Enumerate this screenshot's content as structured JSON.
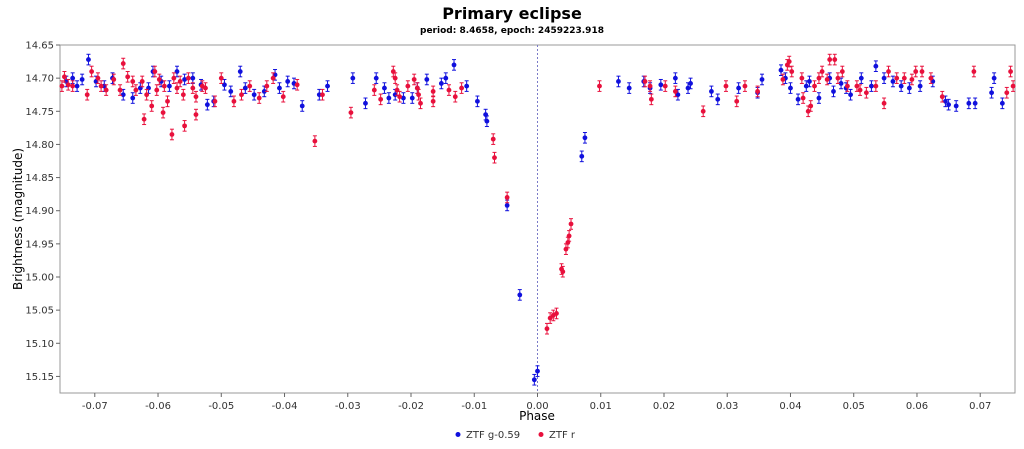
{
  "chart_data": {
    "type": "scatter",
    "title": "Primary eclipse",
    "subtitle": "period: 8.4658, epoch: 2459223.918",
    "xlabel": "Phase",
    "ylabel": "Brightness (magnitude)",
    "xlim": [
      -0.0755,
      0.0755
    ],
    "ylim": [
      14.65,
      15.175
    ],
    "y_inverted": true,
    "x_ticks": [
      -0.07,
      -0.06,
      -0.05,
      -0.04,
      -0.03,
      -0.02,
      -0.01,
      0.0,
      0.01,
      0.02,
      0.03,
      0.04,
      0.05,
      0.06,
      0.07
    ],
    "x_tick_labels": [
      "-0.07",
      "-0.06",
      "-0.05",
      "-0.04",
      "-0.03",
      "-0.02",
      "-0.01",
      "0.00",
      "0.01",
      "0.02",
      "0.03",
      "0.04",
      "0.05",
      "0.06",
      "0.07"
    ],
    "y_ticks": [
      14.65,
      14.7,
      14.75,
      14.8,
      14.85,
      14.9,
      14.95,
      15.0,
      15.05,
      15.1,
      15.15
    ],
    "y_tick_labels": [
      "14.65",
      "14.70",
      "14.75",
      "14.80",
      "14.85",
      "14.90",
      "14.95",
      "15.00",
      "15.05",
      "15.10",
      "15.15"
    ],
    "grid": false,
    "reference_line_x": 0.0,
    "legend_position": "bottom",
    "series": [
      {
        "name": "ZTF g-0.59",
        "color": "#1010dd",
        "error": 0.008,
        "points": [
          [
            -0.0745,
            14.705
          ],
          [
            -0.0735,
            14.7
          ],
          [
            -0.0728,
            14.712
          ],
          [
            -0.072,
            14.702
          ],
          [
            -0.071,
            14.672
          ],
          [
            -0.0698,
            14.705
          ],
          [
            -0.0685,
            14.712
          ],
          [
            -0.0672,
            14.7
          ],
          [
            -0.0655,
            14.725
          ],
          [
            -0.064,
            14.73
          ],
          [
            -0.0628,
            14.715
          ],
          [
            -0.0615,
            14.715
          ],
          [
            -0.0608,
            14.69
          ],
          [
            -0.0595,
            14.705
          ],
          [
            -0.0582,
            14.712
          ],
          [
            -0.057,
            14.69
          ],
          [
            -0.0558,
            14.702
          ],
          [
            -0.0545,
            14.7
          ],
          [
            -0.0532,
            14.71
          ],
          [
            -0.0522,
            14.74
          ],
          [
            -0.0512,
            14.735
          ],
          [
            -0.0495,
            14.71
          ],
          [
            -0.0485,
            14.72
          ],
          [
            -0.047,
            14.69
          ],
          [
            -0.0462,
            14.715
          ],
          [
            -0.0448,
            14.725
          ],
          [
            -0.0432,
            14.72
          ],
          [
            -0.0415,
            14.695
          ],
          [
            -0.0408,
            14.715
          ],
          [
            -0.0395,
            14.705
          ],
          [
            -0.0385,
            14.708
          ],
          [
            -0.0372,
            14.742
          ],
          [
            -0.0345,
            14.725
          ],
          [
            -0.0332,
            14.712
          ],
          [
            -0.0292,
            14.7
          ],
          [
            -0.0272,
            14.738
          ],
          [
            -0.0255,
            14.7
          ],
          [
            -0.0242,
            14.715
          ],
          [
            -0.0235,
            14.73
          ],
          [
            -0.0225,
            14.725
          ],
          [
            -0.0212,
            14.73
          ],
          [
            -0.0198,
            14.73
          ],
          [
            -0.019,
            14.715
          ],
          [
            -0.0175,
            14.702
          ],
          [
            -0.0152,
            14.708
          ],
          [
            -0.0145,
            14.7
          ],
          [
            -0.0132,
            14.68
          ],
          [
            -0.0112,
            14.712
          ],
          [
            -0.0095,
            14.735
          ],
          [
            -0.0082,
            14.755
          ],
          [
            -0.008,
            14.765
          ],
          [
            -0.0048,
            14.892
          ],
          [
            -0.0028,
            15.027
          ],
          [
            -0.0005,
            15.155
          ],
          [
            0.0,
            15.142
          ],
          [
            0.007,
            14.818
          ],
          [
            0.0075,
            14.79
          ],
          [
            0.0128,
            14.705
          ],
          [
            0.0145,
            14.715
          ],
          [
            0.0168,
            14.705
          ],
          [
            0.0178,
            14.715
          ],
          [
            0.0195,
            14.71
          ],
          [
            0.0218,
            14.7
          ],
          [
            0.0222,
            14.725
          ],
          [
            0.0238,
            14.715
          ],
          [
            0.0242,
            14.708
          ],
          [
            0.0275,
            14.72
          ],
          [
            0.0285,
            14.732
          ],
          [
            0.0318,
            14.715
          ],
          [
            0.0348,
            14.722
          ],
          [
            0.0355,
            14.702
          ],
          [
            0.0385,
            14.688
          ],
          [
            0.0392,
            14.7
          ],
          [
            0.04,
            14.715
          ],
          [
            0.0412,
            14.732
          ],
          [
            0.0425,
            14.712
          ],
          [
            0.043,
            14.705
          ],
          [
            0.0445,
            14.73
          ],
          [
            0.0462,
            14.7
          ],
          [
            0.0468,
            14.72
          ],
          [
            0.048,
            14.708
          ],
          [
            0.0488,
            14.715
          ],
          [
            0.0495,
            14.725
          ],
          [
            0.0512,
            14.7
          ],
          [
            0.0528,
            14.712
          ],
          [
            0.0535,
            14.682
          ],
          [
            0.0548,
            14.7
          ],
          [
            0.0562,
            14.705
          ],
          [
            0.0575,
            14.712
          ],
          [
            0.0588,
            14.715
          ],
          [
            0.0605,
            14.712
          ],
          [
            0.0625,
            14.705
          ],
          [
            0.0645,
            14.735
          ],
          [
            0.065,
            14.74
          ],
          [
            0.0662,
            14.742
          ],
          [
            0.0682,
            14.738
          ],
          [
            0.0692,
            14.738
          ],
          [
            0.0718,
            14.722
          ],
          [
            0.0722,
            14.7
          ],
          [
            0.0735,
            14.738
          ]
        ]
      },
      {
        "name": "ZTF r",
        "color": "#e8103c",
        "error": 0.008,
        "points": [
          [
            -0.0752,
            14.712
          ],
          [
            -0.0748,
            14.698
          ],
          [
            -0.0742,
            14.71
          ],
          [
            -0.0735,
            14.712
          ],
          [
            -0.0712,
            14.725
          ],
          [
            -0.0705,
            14.69
          ],
          [
            -0.0695,
            14.7
          ],
          [
            -0.069,
            14.712
          ],
          [
            -0.0682,
            14.718
          ],
          [
            -0.067,
            14.702
          ],
          [
            -0.066,
            14.718
          ],
          [
            -0.0655,
            14.678
          ],
          [
            -0.0648,
            14.698
          ],
          [
            -0.064,
            14.705
          ],
          [
            -0.0635,
            14.718
          ],
          [
            -0.0625,
            14.705
          ],
          [
            -0.0618,
            14.725
          ],
          [
            -0.061,
            14.742
          ],
          [
            -0.0605,
            14.69
          ],
          [
            -0.0598,
            14.702
          ],
          [
            -0.059,
            14.712
          ],
          [
            -0.0585,
            14.735
          ],
          [
            -0.0575,
            14.7
          ],
          [
            -0.057,
            14.715
          ],
          [
            -0.0565,
            14.705
          ],
          [
            -0.056,
            14.725
          ],
          [
            -0.0552,
            14.7
          ],
          [
            -0.0545,
            14.715
          ],
          [
            -0.054,
            14.728
          ],
          [
            -0.053,
            14.712
          ],
          [
            -0.0622,
            14.762
          ],
          [
            -0.0602,
            14.718
          ],
          [
            -0.0592,
            14.752
          ],
          [
            -0.0578,
            14.785
          ],
          [
            -0.0558,
            14.772
          ],
          [
            -0.054,
            14.755
          ],
          [
            -0.0525,
            14.715
          ],
          [
            -0.051,
            14.735
          ],
          [
            -0.05,
            14.7
          ],
          [
            -0.048,
            14.735
          ],
          [
            -0.0468,
            14.725
          ],
          [
            -0.0455,
            14.712
          ],
          [
            -0.044,
            14.73
          ],
          [
            -0.0428,
            14.712
          ],
          [
            -0.0418,
            14.7
          ],
          [
            -0.0402,
            14.728
          ],
          [
            -0.038,
            14.71
          ],
          [
            -0.0352,
            14.795
          ],
          [
            -0.034,
            14.725
          ],
          [
            -0.0295,
            14.752
          ],
          [
            -0.0258,
            14.718
          ],
          [
            -0.0248,
            14.732
          ],
          [
            -0.0228,
            14.69
          ],
          [
            -0.0225,
            14.7
          ],
          [
            -0.0222,
            14.718
          ],
          [
            -0.0218,
            14.728
          ],
          [
            -0.0205,
            14.712
          ],
          [
            -0.0195,
            14.702
          ],
          [
            -0.019,
            14.715
          ],
          [
            -0.0188,
            14.725
          ],
          [
            -0.0185,
            14.738
          ],
          [
            -0.0165,
            14.72
          ],
          [
            -0.0165,
            14.735
          ],
          [
            -0.014,
            14.718
          ],
          [
            -0.013,
            14.728
          ],
          [
            -0.012,
            14.715
          ],
          [
            -0.007,
            14.792
          ],
          [
            -0.0068,
            14.82
          ],
          [
            -0.0048,
            14.88
          ],
          [
            0.0015,
            15.078
          ],
          [
            0.002,
            15.062
          ],
          [
            0.0025,
            15.058
          ],
          [
            0.003,
            15.055
          ],
          [
            0.0038,
            14.988
          ],
          [
            0.004,
            14.992
          ],
          [
            0.0045,
            14.958
          ],
          [
            0.0048,
            14.948
          ],
          [
            0.005,
            14.938
          ],
          [
            0.0053,
            14.92
          ],
          [
            0.0098,
            14.712
          ],
          [
            0.017,
            14.705
          ],
          [
            0.0178,
            14.712
          ],
          [
            0.018,
            14.732
          ],
          [
            0.0202,
            14.712
          ],
          [
            0.0218,
            14.72
          ],
          [
            0.0262,
            14.75
          ],
          [
            0.0298,
            14.712
          ],
          [
            0.0315,
            14.735
          ],
          [
            0.0328,
            14.712
          ],
          [
            0.0348,
            14.72
          ],
          [
            0.0388,
            14.702
          ],
          [
            0.0395,
            14.68
          ],
          [
            0.0398,
            14.675
          ],
          [
            0.0402,
            14.69
          ],
          [
            0.0418,
            14.7
          ],
          [
            0.042,
            14.73
          ],
          [
            0.0428,
            14.75
          ],
          [
            0.0432,
            14.742
          ],
          [
            0.0438,
            14.712
          ],
          [
            0.0445,
            14.7
          ],
          [
            0.045,
            14.69
          ],
          [
            0.0458,
            14.702
          ],
          [
            0.0462,
            14.672
          ],
          [
            0.047,
            14.672
          ],
          [
            0.0475,
            14.7
          ],
          [
            0.0482,
            14.69
          ],
          [
            0.049,
            14.712
          ],
          [
            0.0505,
            14.712
          ],
          [
            0.051,
            14.718
          ],
          [
            0.052,
            14.722
          ],
          [
            0.0535,
            14.712
          ],
          [
            0.0548,
            14.738
          ],
          [
            0.0555,
            14.69
          ],
          [
            0.0568,
            14.7
          ],
          [
            0.058,
            14.7
          ],
          [
            0.0592,
            14.702
          ],
          [
            0.0598,
            14.69
          ],
          [
            0.0608,
            14.69
          ],
          [
            0.0622,
            14.7
          ],
          [
            0.064,
            14.728
          ],
          [
            0.069,
            14.69
          ],
          [
            0.0742,
            14.722
          ],
          [
            0.0748,
            14.69
          ],
          [
            0.0752,
            14.712
          ]
        ]
      }
    ]
  }
}
